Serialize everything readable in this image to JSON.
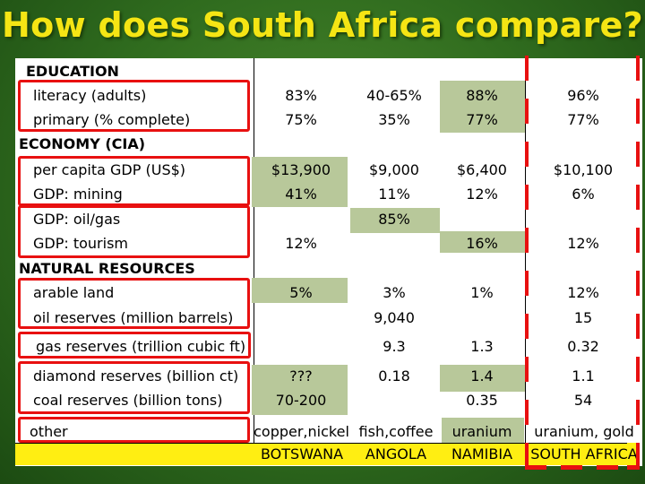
{
  "title": "How does South Africa compare?",
  "rows": [
    {
      "label": "EDUCATION",
      "header": true
    },
    {
      "label": "literacy (adults)"
    },
    {
      "label": "primary (% complete)"
    },
    {
      "label": "ECONOMY (CIA)",
      "header": true
    },
    {
      "label": "per capita GDP (US$)"
    },
    {
      "label": "GDP: mining"
    },
    {
      "label": "GDP: oil/gas"
    },
    {
      "label": "GDP: tourism"
    },
    {
      "label": "NATURAL RESOURCES",
      "header": true
    },
    {
      "label": "arable land"
    },
    {
      "label": "oil reserves (million barrels)"
    },
    {
      "label": "gas reserves (trillion cubic ft)"
    },
    {
      "label": "diamond reserves (billion ct)"
    },
    {
      "label": "coal reserves (billion tons)"
    },
    {
      "label": "other"
    }
  ],
  "countries": [
    "BOTSWANA",
    "ANGOLA",
    "NAMIBIA",
    "SOUTH AFRICA"
  ],
  "values": {
    "botswana": {
      "literacy": "83%",
      "primary": "75%",
      "gdp_pc": "$13,900",
      "mining": "41%",
      "tourism": "12%",
      "arable": "5%",
      "diamond": "???",
      "coal": "70-200",
      "other": "copper,nickel"
    },
    "angola": {
      "literacy": "40-65%",
      "primary": "35%",
      "gdp_pc": "$9,000",
      "mining": "11%",
      "oilgas": "85%",
      "arable": "3%",
      "oil": "9,040",
      "gas": "9.3",
      "diamond": "0.18",
      "other": "fish,coffee"
    },
    "namibia": {
      "literacy": "88%",
      "primary": "77%",
      "gdp_pc": "$6,400",
      "mining": "12%",
      "tourism": "16%",
      "arable": "1%",
      "gas": "1.3",
      "diamond": "1.4",
      "coal": "0.35",
      "other": "uranium"
    },
    "south_africa": {
      "literacy": "96%",
      "primary": "77%",
      "gdp_pc": "$10,100",
      "mining": "6%",
      "tourism": "12%",
      "arable": "12%",
      "oil": "15",
      "gas": "0.32",
      "diamond": "1.1",
      "coal": "54",
      "other": "uranium, gold"
    }
  },
  "colors": {
    "title": "#f5e514",
    "highlight_box": "#e81010",
    "highlight_cell": "#b8c89a",
    "footer": "#ffee12"
  }
}
